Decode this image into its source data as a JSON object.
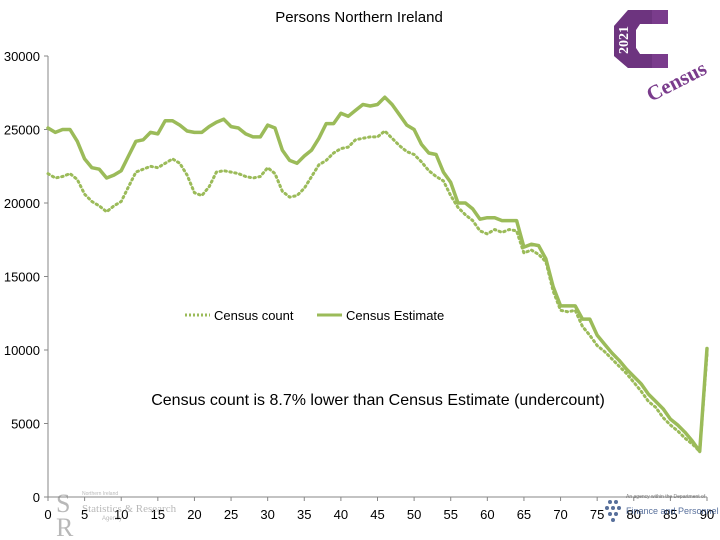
{
  "chart_data": {
    "type": "line",
    "title": "Persons Northern Ireland",
    "xlabel": "",
    "ylabel": "",
    "xlim": [
      0,
      90
    ],
    "ylim": [
      0,
      30000
    ],
    "x_ticks": [
      0,
      5,
      10,
      15,
      20,
      25,
      30,
      35,
      40,
      45,
      50,
      55,
      60,
      65,
      70,
      75,
      80,
      85,
      90
    ],
    "y_ticks": [
      0,
      5000,
      10000,
      15000,
      20000,
      25000,
      30000
    ],
    "grid": false,
    "legend_position": "center",
    "annotation": "Census count is 8.7% lower than Census Estimate (undercount)",
    "x": [
      0,
      1,
      2,
      3,
      4,
      5,
      6,
      7,
      8,
      9,
      10,
      11,
      12,
      13,
      14,
      15,
      16,
      17,
      18,
      19,
      20,
      21,
      22,
      23,
      24,
      25,
      26,
      27,
      28,
      29,
      30,
      31,
      32,
      33,
      34,
      35,
      36,
      37,
      38,
      39,
      40,
      41,
      42,
      43,
      44,
      45,
      46,
      47,
      48,
      49,
      50,
      51,
      52,
      53,
      54,
      55,
      56,
      57,
      58,
      59,
      60,
      61,
      62,
      63,
      64,
      65,
      66,
      67,
      68,
      69,
      70,
      71,
      72,
      73,
      74,
      75,
      76,
      77,
      78,
      79,
      80,
      81,
      82,
      83,
      84,
      85,
      86,
      87,
      88,
      89,
      90
    ],
    "series": [
      {
        "name": "Census count",
        "style": "dotted",
        "color": "#9bbb59",
        "values": [
          22000,
          21700,
          21800,
          22000,
          21600,
          20600,
          20100,
          19800,
          19400,
          19800,
          20100,
          21100,
          22100,
          22300,
          22500,
          22400,
          22700,
          23000,
          22700,
          21900,
          20700,
          20500,
          21100,
          22100,
          22200,
          22100,
          22000,
          21800,
          21700,
          21800,
          22400,
          22000,
          20800,
          20400,
          20500,
          21000,
          21800,
          22600,
          22900,
          23400,
          23700,
          23800,
          24300,
          24400,
          24500,
          24500,
          24900,
          24400,
          23900,
          23500,
          23300,
          22800,
          22200,
          21800,
          21500,
          20500,
          19700,
          19200,
          18800,
          18100,
          17900,
          18200,
          18000,
          18200,
          18100,
          16600,
          16800,
          16500,
          16000,
          14000,
          12700,
          12600,
          12700,
          11600,
          11000,
          10300,
          9900,
          9400,
          8900,
          8400,
          7800,
          7200,
          6500,
          6100,
          5400,
          4900,
          4500,
          4000,
          3600,
          3100,
          9700
        ]
      },
      {
        "name": "Census Estimate",
        "style": "solid",
        "color": "#9bbb59",
        "values": [
          25100,
          24800,
          25000,
          25000,
          24200,
          23000,
          22400,
          22300,
          21700,
          21900,
          22200,
          23200,
          24200,
          24300,
          24800,
          24700,
          25600,
          25600,
          25300,
          24900,
          24800,
          24800,
          25200,
          25500,
          25700,
          25200,
          25100,
          24700,
          24500,
          24500,
          25300,
          25100,
          23600,
          22900,
          22700,
          23200,
          23600,
          24400,
          25400,
          25400,
          26100,
          25900,
          26300,
          26700,
          26600,
          26700,
          27200,
          26700,
          26000,
          25300,
          25000,
          24000,
          23400,
          23300,
          22100,
          21400,
          20000,
          20000,
          19600,
          18900,
          19000,
          19000,
          18800,
          18800,
          18800,
          17000,
          17200,
          17100,
          16200,
          14300,
          13000,
          13000,
          13000,
          12100,
          12100,
          11000,
          10400,
          9800,
          9300,
          8700,
          8200,
          7700,
          7000,
          6500,
          6000,
          5300,
          4900,
          4400,
          3800,
          3100,
          10100
        ]
      }
    ]
  },
  "logos": {
    "census_year": "2021",
    "census_word": "Census",
    "nisra_line1": "Northern Ireland",
    "nisra_line2": "Statistics & Research",
    "nisra_line3": "Agency",
    "dept_line1": "An agency within the Department of",
    "dept_line2": "Finance and Personnel",
    "census_purple": "#7a3c8c",
    "nisra_grey": "#7f7f7f"
  }
}
